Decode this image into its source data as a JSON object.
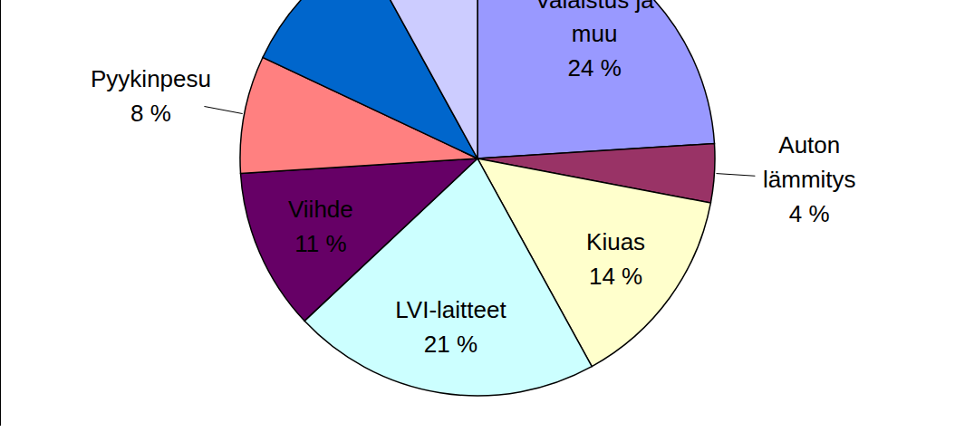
{
  "chart_data": {
    "type": "pie",
    "categories": [
      "Valaistus ja muu",
      "Auton lämmitys",
      "Kiuas",
      "LVI-laitteet",
      "Viihde",
      "Pyykinpesu",
      null,
      null
    ],
    "values": [
      24,
      4,
      14,
      21,
      11,
      8,
      10,
      8
    ],
    "value_labels": [
      "24 %",
      "4 %",
      "14 %",
      "21 %",
      "11 %",
      "8 %",
      null,
      null
    ],
    "colors": [
      "#9999ff",
      "#993366",
      "#ffffcc",
      "#ccffff",
      "#660066",
      "#ff8080",
      "#0066cc",
      "#ccccff"
    ],
    "data_labels": true
  }
}
